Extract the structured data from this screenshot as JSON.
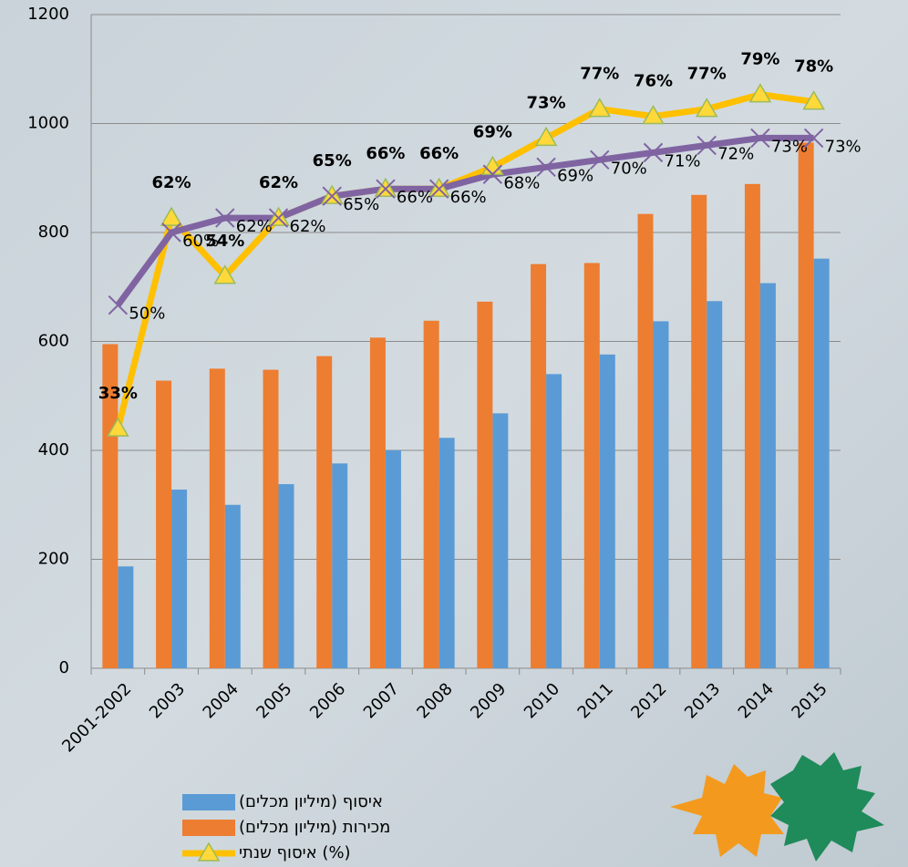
{
  "chart_data": {
    "type": "bar",
    "categories": [
      "2001-2002",
      "2003",
      "2004",
      "2005",
      "2006",
      "2007",
      "2008",
      "2009",
      "2010",
      "2011",
      "2012",
      "2013",
      "2014",
      "2015"
    ],
    "series": [
      {
        "name": "איסוף (מיליון מכלים)",
        "color": "#5b9bd5",
        "values": [
          187,
          328,
          300,
          338,
          376,
          400,
          423,
          468,
          540,
          576,
          637,
          674,
          707,
          752
        ]
      },
      {
        "name": "מכירות (מיליון מכלים)",
        "color": "#ed7d31",
        "values": [
          595,
          528,
          550,
          548,
          573,
          607,
          638,
          673,
          742,
          744,
          834,
          869,
          889,
          965
        ]
      },
      {
        "name": "איסוף שנתי (%)",
        "type": "line",
        "marker": "triangle",
        "axis": "y2",
        "color": "#ffc000",
        "values": [
          33,
          62,
          54,
          62,
          65,
          66,
          66,
          69,
          73,
          77,
          76,
          77,
          79,
          78
        ],
        "value_labels": [
          "33%",
          "62%",
          "54%",
          "62%",
          "65%",
          "66%",
          "66%",
          "69%",
          "73%",
          "77%",
          "76%",
          "77%",
          "79%",
          "78%"
        ]
      },
      {
        "type": "line",
        "marker": "x",
        "axis": "y2",
        "color": "#8064a2",
        "values": [
          50,
          60,
          62,
          62,
          65,
          66,
          66,
          68,
          69,
          70,
          71,
          72,
          73,
          73
        ],
        "value_labels": [
          "50%",
          "60%",
          "62%",
          "62%",
          "65%",
          "66%",
          "66%",
          "68%",
          "69%",
          "70%",
          "71%",
          "72%",
          "73%",
          "73%"
        ]
      }
    ],
    "ylim": [
      0,
      1200
    ],
    "yticks": [
      0,
      200,
      400,
      600,
      800,
      1000,
      1200
    ],
    "y2lim": [
      0,
      90
    ],
    "grid": true,
    "legend": "bottom"
  }
}
